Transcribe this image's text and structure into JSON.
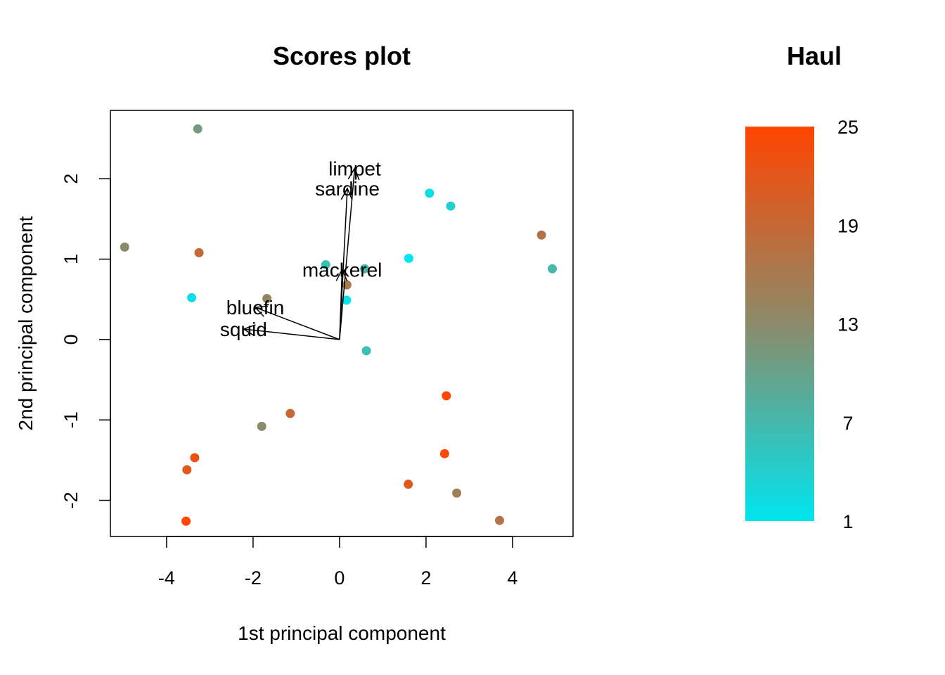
{
  "chart_data": {
    "type": "scatter",
    "title": "Scores plot",
    "xlabel": "1st principal component",
    "ylabel": "2nd principal component",
    "xlim": [
      -5.3,
      5.4
    ],
    "ylim": [
      -2.45,
      2.85
    ],
    "xticks": [
      -4,
      -2,
      0,
      2,
      4
    ],
    "yticks": [
      -2,
      -1,
      0,
      1,
      2
    ],
    "grid": false,
    "points": [
      {
        "x": -3.28,
        "y": 2.62,
        "haul": 11
      },
      {
        "x": -4.97,
        "y": 1.15,
        "haul": 13
      },
      {
        "x": -3.25,
        "y": 1.08,
        "haul": 19
      },
      {
        "x": -3.42,
        "y": 0.52,
        "haul": 2
      },
      {
        "x": -1.68,
        "y": 0.51,
        "haul": 14
      },
      {
        "x": -0.32,
        "y": 0.93,
        "haul": 6
      },
      {
        "x": 0.58,
        "y": 0.88,
        "haul": 7
      },
      {
        "x": 0.17,
        "y": 0.68,
        "haul": 16
      },
      {
        "x": 0.16,
        "y": 0.49,
        "haul": 1
      },
      {
        "x": 1.6,
        "y": 1.01,
        "haul": 1
      },
      {
        "x": 2.08,
        "y": 1.82,
        "haul": 2
      },
      {
        "x": 2.57,
        "y": 1.66,
        "haul": 4
      },
      {
        "x": 4.67,
        "y": 1.3,
        "haul": 17
      },
      {
        "x": 4.92,
        "y": 0.88,
        "haul": 7
      },
      {
        "x": 0.62,
        "y": -0.14,
        "haul": 6
      },
      {
        "x": 2.47,
        "y": -0.7,
        "haul": 25
      },
      {
        "x": -1.14,
        "y": -0.92,
        "haul": 19
      },
      {
        "x": -1.8,
        "y": -1.08,
        "haul": 13
      },
      {
        "x": 2.43,
        "y": -1.42,
        "haul": 24
      },
      {
        "x": -3.35,
        "y": -1.47,
        "haul": 23
      },
      {
        "x": -3.53,
        "y": -1.62,
        "haul": 22
      },
      {
        "x": 1.59,
        "y": -1.8,
        "haul": 22
      },
      {
        "x": 2.71,
        "y": -1.91,
        "haul": 15
      },
      {
        "x": -3.55,
        "y": -2.26,
        "haul": 25
      },
      {
        "x": 3.7,
        "y": -2.25,
        "haul": 17
      }
    ],
    "loadings": [
      {
        "name": "limpet",
        "x": 0.35,
        "y": 2.13
      },
      {
        "name": "sardine",
        "x": 0.18,
        "y": 1.88
      },
      {
        "name": "mackerel",
        "x": 0.06,
        "y": 0.87
      },
      {
        "name": "bluefin",
        "x": -1.95,
        "y": 0.4
      },
      {
        "name": "squid",
        "x": -2.22,
        "y": 0.13
      }
    ],
    "colorbar": {
      "title": "Haul",
      "min": 1,
      "max": 25,
      "ticks": [
        1,
        7,
        13,
        19,
        25
      ],
      "low_color": "#00E5EE",
      "mid_color": "#8B8B6A",
      "high_color": "#FF4500"
    }
  }
}
